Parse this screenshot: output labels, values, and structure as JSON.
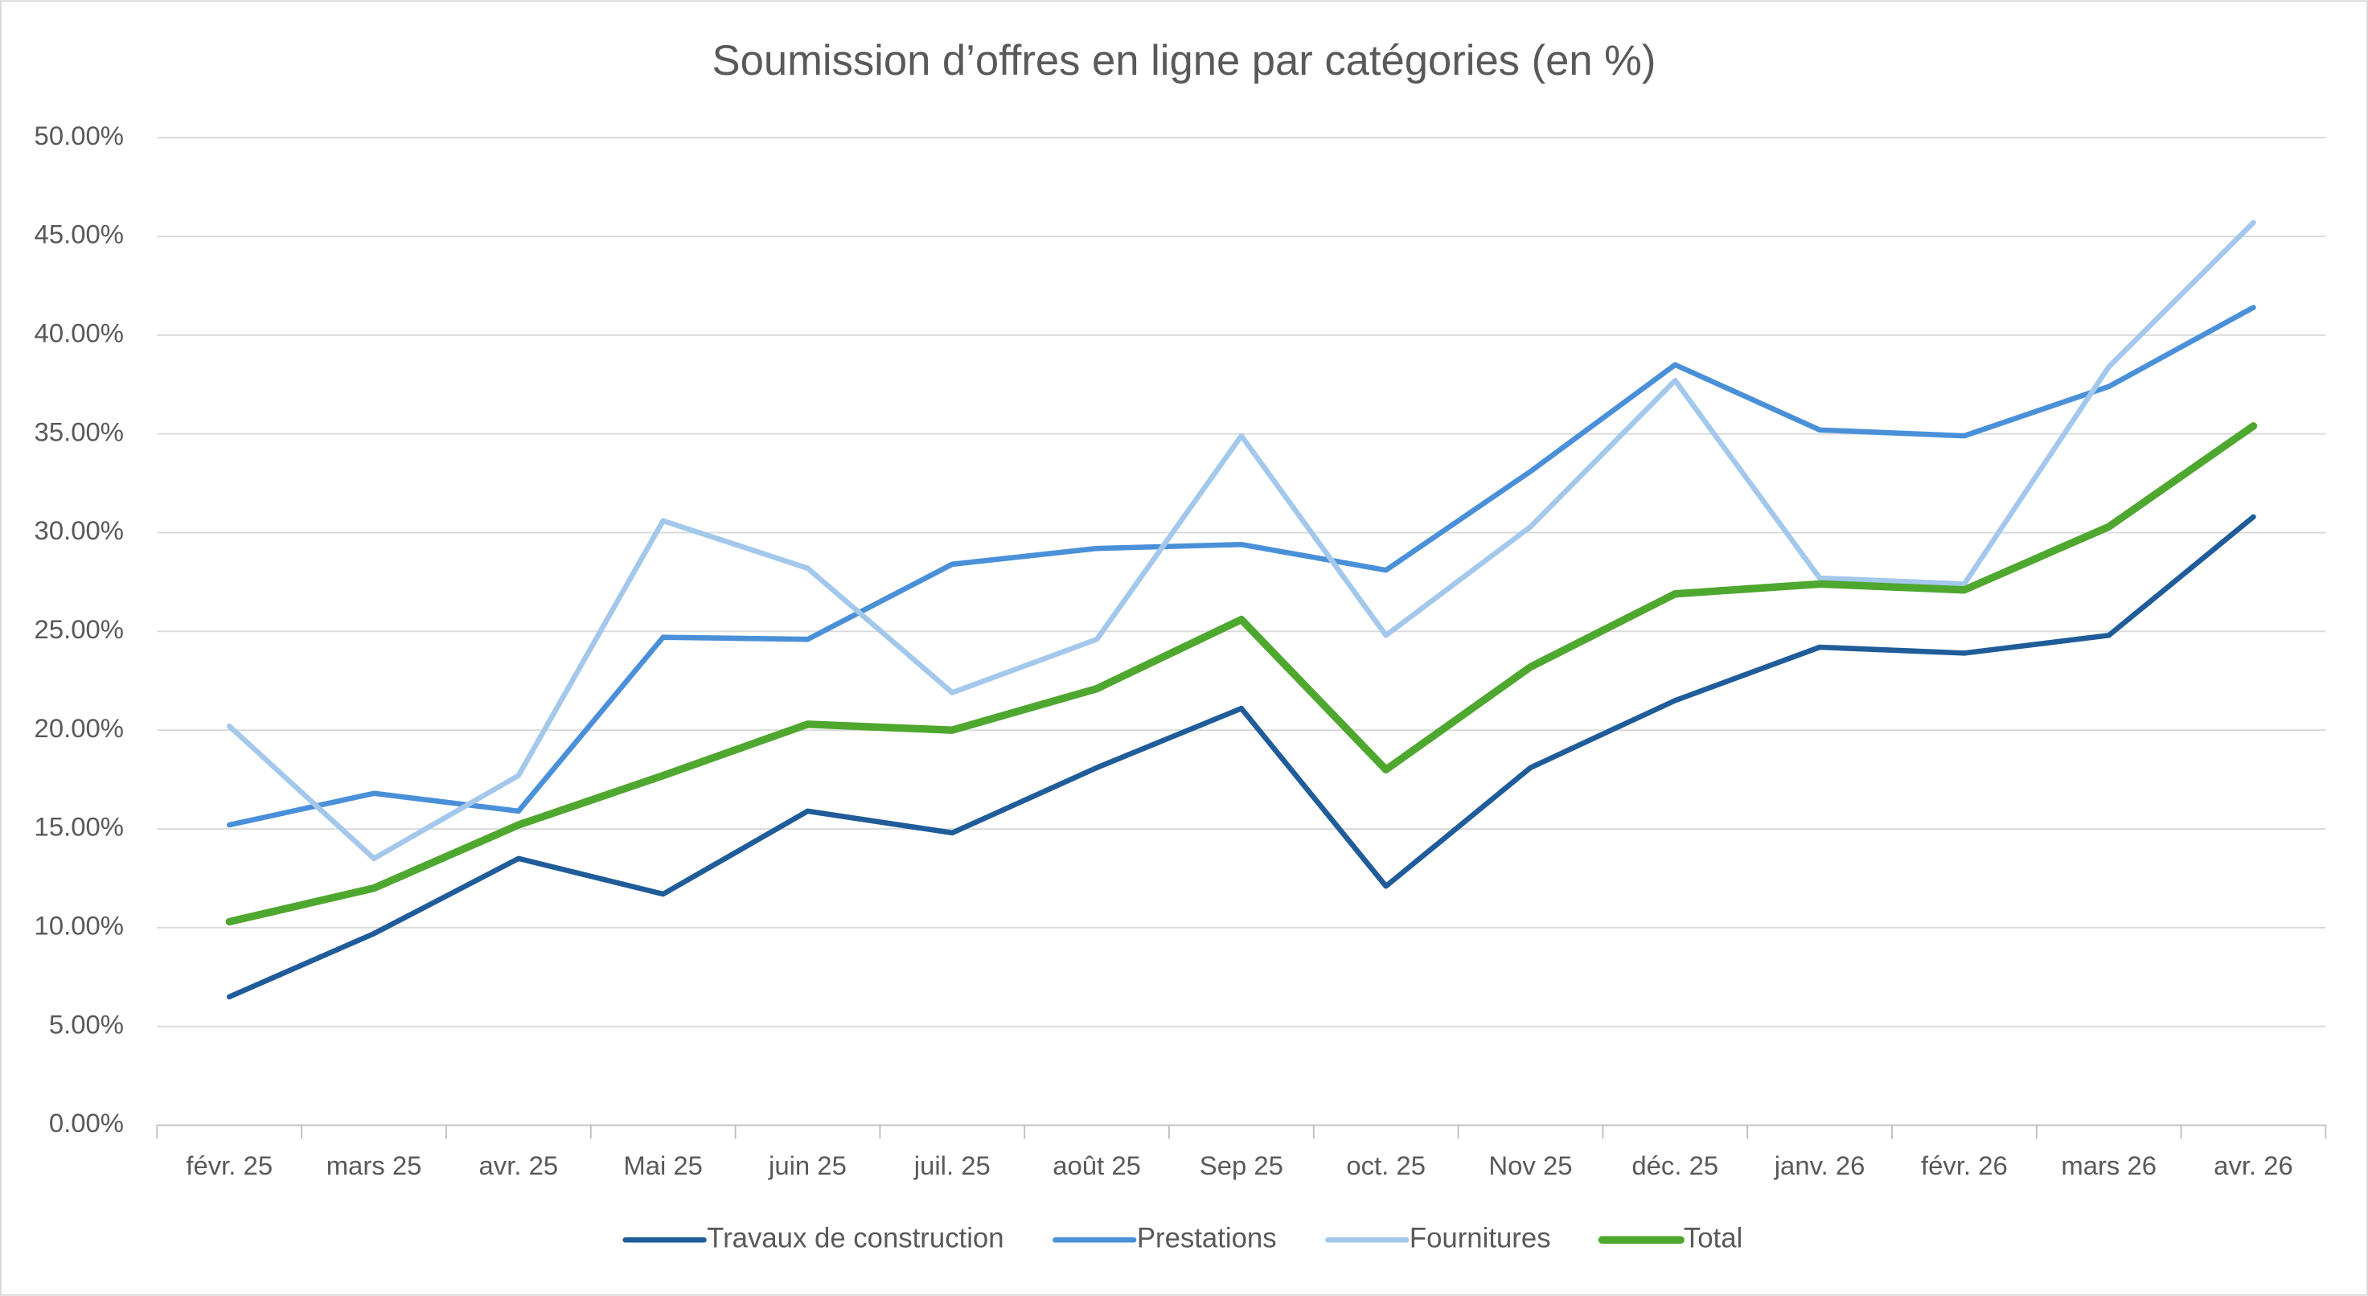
{
  "chart_data": {
    "type": "line",
    "title": "Soumission d’offres en ligne par catégories (en %)",
    "categories": [
      "févr. 25",
      "mars 25",
      "avr. 25",
      "Mai 25",
      "juin 25",
      "juil. 25",
      "août 25",
      "Sep 25",
      "oct. 25",
      "Nov 25",
      "déc. 25",
      "janv. 26",
      "févr. 26",
      "mars 26",
      "avr. 26"
    ],
    "series": [
      {
        "name": "Travaux de construction",
        "color": "#1f5c99",
        "values": [
          6.5,
          9.7,
          13.5,
          11.7,
          15.9,
          14.8,
          18.1,
          21.1,
          12.1,
          18.1,
          21.5,
          24.2,
          23.9,
          24.8,
          30.8
        ]
      },
      {
        "name": "Prestations",
        "color": "#4a90d9",
        "values": [
          15.2,
          16.8,
          15.9,
          24.7,
          24.6,
          28.4,
          29.2,
          29.4,
          28.1,
          33.1,
          38.5,
          35.2,
          34.9,
          37.4,
          41.4
        ]
      },
      {
        "name": "Fournitures",
        "color": "#a3c8ec",
        "values": [
          20.2,
          13.5,
          17.7,
          30.6,
          28.2,
          21.9,
          24.6,
          34.9,
          24.8,
          30.3,
          37.7,
          27.7,
          27.4,
          38.4,
          45.7
        ]
      },
      {
        "name": "Total",
        "color": "#4ea72e",
        "values": [
          10.3,
          12.0,
          15.2,
          17.7,
          20.3,
          20.0,
          22.1,
          25.6,
          18.0,
          23.2,
          26.9,
          27.4,
          27.1,
          30.3,
          35.4
        ]
      }
    ],
    "ylim": [
      0,
      50
    ],
    "yticks": [
      {
        "value": 0,
        "label": "0.00%"
      },
      {
        "value": 5,
        "label": "5.00%"
      },
      {
        "value": 10,
        "label": "10.00%"
      },
      {
        "value": 15,
        "label": "15.00%"
      },
      {
        "value": 20,
        "label": "20.00%"
      },
      {
        "value": 25,
        "label": "25.00%"
      },
      {
        "value": 30,
        "label": "30.00%"
      },
      {
        "value": 35,
        "label": "35.00%"
      },
      {
        "value": 40,
        "label": "40.00%"
      },
      {
        "value": 45,
        "label": "45.00%"
      },
      {
        "value": 50,
        "label": "50.00%"
      }
    ],
    "grid": true,
    "legend": "bottom"
  }
}
